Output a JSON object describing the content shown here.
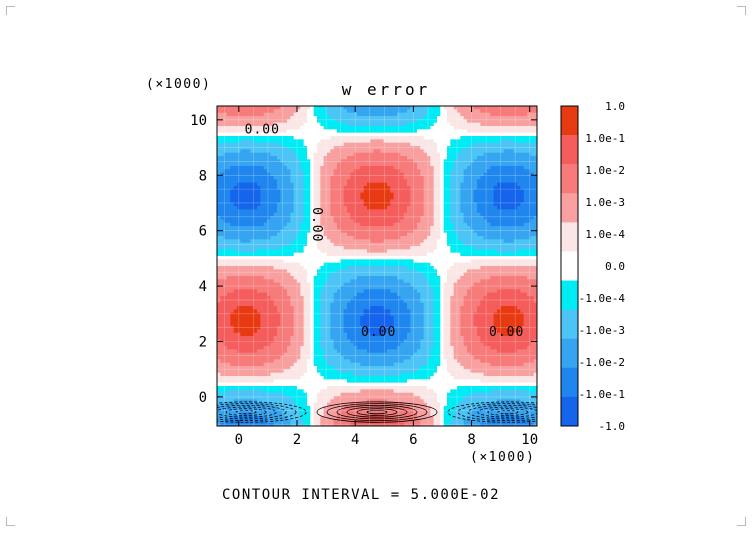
{
  "chart_data": {
    "type": "heatmap",
    "title": "w error",
    "x_multiplier": "(×1000)",
    "y_multiplier": "(×1000)",
    "x_ticks": [
      0,
      2,
      4,
      6,
      8,
      10
    ],
    "y_ticks": [
      0,
      2,
      4,
      6,
      8,
      10
    ],
    "xlim": [
      -0.75,
      10.25
    ],
    "ylim": [
      -1.05,
      10.5
    ],
    "grid": true,
    "legend": {
      "placement": "right",
      "colors": [
        "#e83a12",
        "#f55d5d",
        "#f77b7b",
        "#f8a0a0",
        "#fbe6e6",
        "#ffffff",
        "#00ecf5",
        "#4cc4f5",
        "#36a5f1",
        "#1e86ee",
        "#1464ec"
      ],
      "labels": [
        "1.0",
        "1.0e-1",
        "1.0e-2",
        "1.0e-3",
        "1.0e-4",
        "0.0",
        "-1.0e-4",
        "-1.0e-3",
        "-1.0e-2",
        "-1.0e-1",
        "-1.0"
      ]
    },
    "contour_labels": [
      {
        "text": "0.00",
        "x": 0.2,
        "y": 9.5
      },
      {
        "text": "0.00",
        "x": 2.55,
        "y": 6.85,
        "rotate": 90
      },
      {
        "text": "0.00",
        "x": 4.2,
        "y": 2.2
      },
      {
        "text": "0.00",
        "x": 8.6,
        "y": 2.2
      }
    ],
    "footer": "CONTOUR INTERVAL = 5.000E-02"
  }
}
